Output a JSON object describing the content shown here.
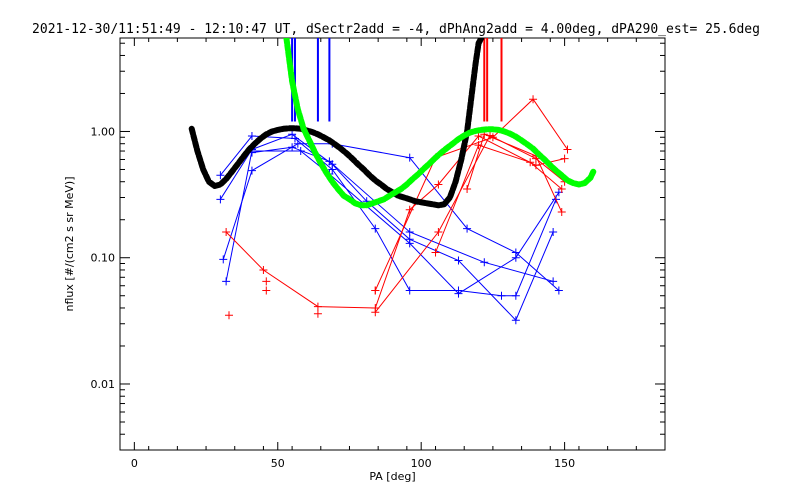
{
  "chart_data": {
    "type": "scatter",
    "title": "2021-12-30/11:51:49 - 12:10:47 UT, dSectr2add = -4, dPhAng2add = 4.00deg, dPA290_est=  25.6deg",
    "xlabel": "PA [deg]",
    "ylabel": "nflux [#/(cm2 s sr MeV)]",
    "xlim": [
      -5,
      185
    ],
    "ylim": [
      0.003,
      5.5
    ],
    "yscale": "log",
    "grid": false,
    "x_ticks": [
      0,
      50,
      100,
      150
    ],
    "x_tick_labels": [
      "0",
      "50",
      "100",
      "150"
    ],
    "y_ticks": [
      0.01,
      0.1,
      1.0
    ],
    "y_tick_labels": [
      "0.01",
      "0.10",
      "1.00"
    ],
    "colors": {
      "blue": "#0000ff",
      "red": "#ff0000",
      "black": "#000000",
      "green": "#00ff00",
      "axes": "#000000"
    },
    "series": [
      {
        "color": "blue",
        "style": "line-plus",
        "lines": [
          [
            [
              30,
              0.45
            ],
            [
              41,
              0.92
            ],
            [
              56,
              0.88
            ],
            [
              69,
              0.5
            ],
            [
              84,
              0.17
            ],
            [
              96,
              0.055
            ],
            [
              113,
              0.055
            ],
            [
              128,
              0.05
            ],
            [
              133,
              0.05
            ],
            [
              147,
              0.29
            ]
          ],
          [
            [
              30,
              0.29
            ],
            [
              41,
              0.72
            ],
            [
              55,
              0.95
            ],
            [
              69,
              0.55
            ],
            [
              81,
              0.28
            ],
            [
              96,
              0.14
            ],
            [
              113,
              0.095
            ],
            [
              133,
              0.032
            ],
            [
              146,
              0.16
            ]
          ],
          [
            [
              31,
              0.097
            ],
            [
              41,
              0.49
            ],
            [
              57,
              0.8
            ],
            [
              69,
              0.8
            ],
            [
              96,
              0.62
            ],
            [
              116,
              0.17
            ],
            [
              133,
              0.11
            ],
            [
              148,
              0.055
            ]
          ],
          [
            [
              32,
              0.065
            ],
            [
              41,
              0.7
            ],
            [
              58,
              0.7
            ],
            [
              68,
              0.46
            ],
            [
              96,
              0.13
            ],
            [
              113,
              0.052
            ],
            [
              133,
              0.1
            ],
            [
              148,
              0.33
            ]
          ],
          [
            [
              41,
              0.68
            ],
            [
              55,
              0.75
            ],
            [
              68,
              0.58
            ],
            [
              96,
              0.16
            ],
            [
              122,
              0.092
            ],
            [
              146,
              0.065
            ]
          ]
        ]
      },
      {
        "color": "red",
        "style": "line-plus",
        "lines": [
          [
            [
              32,
              0.16
            ],
            [
              45,
              0.08
            ],
            [
              64,
              0.041
            ],
            [
              84,
              0.04
            ],
            [
              96,
              0.24
            ],
            [
              106,
              0.38
            ],
            [
              120,
              0.92
            ],
            [
              140,
              0.54
            ],
            [
              150,
              0.61
            ]
          ],
          [
            [
              84,
              0.055
            ],
            [
              105,
              0.62
            ],
            [
              125,
              0.9
            ],
            [
              139,
              1.8
            ],
            [
              151,
              0.72
            ]
          ],
          [
            [
              84,
              0.037
            ],
            [
              106,
              0.16
            ],
            [
              124,
              0.93
            ],
            [
              140,
              0.61
            ],
            [
              150,
              0.4
            ]
          ],
          [
            [
              105,
              0.11
            ],
            [
              120,
              0.78
            ],
            [
              138,
              0.57
            ],
            [
              149,
              0.35
            ]
          ],
          [
            [
              116,
              0.35
            ],
            [
              122,
              0.95
            ],
            [
              140,
              0.64
            ],
            [
              149,
              0.23
            ]
          ]
        ],
        "points": [
          [
            33,
            0.035
          ],
          [
            46,
            0.065
          ],
          [
            46,
            0.055
          ],
          [
            64,
            0.036
          ],
          [
            84,
            0.055
          ]
        ]
      },
      {
        "color": "black",
        "style": "thick-dots",
        "points": [
          [
            20,
            1.05
          ],
          [
            22,
            0.7
          ],
          [
            24,
            0.5
          ],
          [
            26,
            0.4
          ],
          [
            28,
            0.37
          ],
          [
            30,
            0.38
          ],
          [
            32,
            0.42
          ],
          [
            34,
            0.48
          ],
          [
            36,
            0.55
          ],
          [
            38,
            0.63
          ],
          [
            40,
            0.72
          ],
          [
            42,
            0.8
          ],
          [
            44,
            0.88
          ],
          [
            46,
            0.95
          ],
          [
            48,
            1.0
          ],
          [
            50,
            1.03
          ],
          [
            52,
            1.05
          ],
          [
            54,
            1.06
          ],
          [
            56,
            1.06
          ],
          [
            58,
            1.05
          ],
          [
            60,
            1.02
          ],
          [
            62,
            0.99
          ],
          [
            64,
            0.95
          ],
          [
            66,
            0.9
          ],
          [
            68,
            0.85
          ],
          [
            70,
            0.79
          ],
          [
            72,
            0.73
          ],
          [
            74,
            0.67
          ],
          [
            76,
            0.61
          ],
          [
            78,
            0.55
          ],
          [
            80,
            0.5
          ],
          [
            82,
            0.45
          ],
          [
            84,
            0.41
          ],
          [
            86,
            0.38
          ],
          [
            88,
            0.35
          ],
          [
            90,
            0.33
          ],
          [
            92,
            0.31
          ],
          [
            94,
            0.3
          ],
          [
            96,
            0.29
          ],
          [
            98,
            0.28
          ],
          [
            100,
            0.275
          ],
          [
            102,
            0.27
          ],
          [
            104,
            0.265
          ],
          [
            106,
            0.26
          ],
          [
            108,
            0.265
          ],
          [
            110,
            0.3
          ],
          [
            112,
            0.4
          ],
          [
            114,
            0.6
          ],
          [
            116,
            1.0
          ],
          [
            117,
            1.5
          ],
          [
            118,
            2.3
          ],
          [
            119,
            3.5
          ],
          [
            120,
            5.0
          ],
          [
            121,
            5.5
          ]
        ]
      },
      {
        "color": "green",
        "style": "thick-dots",
        "points": [
          [
            53,
            5.5
          ],
          [
            55,
            2.5
          ],
          [
            57,
            1.5
          ],
          [
            59,
            1.05
          ],
          [
            61,
            0.85
          ],
          [
            63,
            0.68
          ],
          [
            65,
            0.56
          ],
          [
            67,
            0.47
          ],
          [
            69,
            0.4
          ],
          [
            71,
            0.35
          ],
          [
            73,
            0.31
          ],
          [
            75,
            0.29
          ],
          [
            77,
            0.27
          ],
          [
            79,
            0.26
          ],
          [
            81,
            0.26
          ],
          [
            83,
            0.27
          ],
          [
            85,
            0.28
          ],
          [
            87,
            0.29
          ],
          [
            89,
            0.31
          ],
          [
            91,
            0.33
          ],
          [
            93,
            0.35
          ],
          [
            95,
            0.38
          ],
          [
            97,
            0.42
          ],
          [
            99,
            0.46
          ],
          [
            101,
            0.51
          ],
          [
            103,
            0.56
          ],
          [
            105,
            0.62
          ],
          [
            107,
            0.68
          ],
          [
            109,
            0.74
          ],
          [
            111,
            0.8
          ],
          [
            113,
            0.87
          ],
          [
            115,
            0.93
          ],
          [
            117,
            0.98
          ],
          [
            119,
            1.01
          ],
          [
            121,
            1.03
          ],
          [
            123,
            1.04
          ],
          [
            125,
            1.04
          ],
          [
            127,
            1.03
          ],
          [
            129,
            1.0
          ],
          [
            131,
            0.96
          ],
          [
            133,
            0.91
          ],
          [
            135,
            0.85
          ],
          [
            137,
            0.79
          ],
          [
            139,
            0.73
          ],
          [
            141,
            0.66
          ],
          [
            143,
            0.6
          ],
          [
            145,
            0.54
          ],
          [
            147,
            0.49
          ],
          [
            149,
            0.45
          ],
          [
            151,
            0.41
          ],
          [
            153,
            0.39
          ],
          [
            155,
            0.38
          ],
          [
            157,
            0.39
          ],
          [
            159,
            0.43
          ],
          [
            160,
            0.48
          ]
        ]
      }
    ],
    "vertical_markers": [
      {
        "color": "blue",
        "x": 55,
        "y_range": [
          1.2,
          5.5
        ]
      },
      {
        "color": "blue",
        "x": 56,
        "y_range": [
          1.2,
          5.5
        ]
      },
      {
        "color": "blue",
        "x": 64,
        "y_range": [
          1.2,
          5.5
        ]
      },
      {
        "color": "blue",
        "x": 68,
        "y_range": [
          1.2,
          5.5
        ]
      },
      {
        "color": "red",
        "x": 122,
        "y_range": [
          1.2,
          5.5
        ]
      },
      {
        "color": "red",
        "x": 123,
        "y_range": [
          1.2,
          5.5
        ]
      },
      {
        "color": "red",
        "x": 128,
        "y_range": [
          1.2,
          5.5
        ]
      }
    ]
  }
}
